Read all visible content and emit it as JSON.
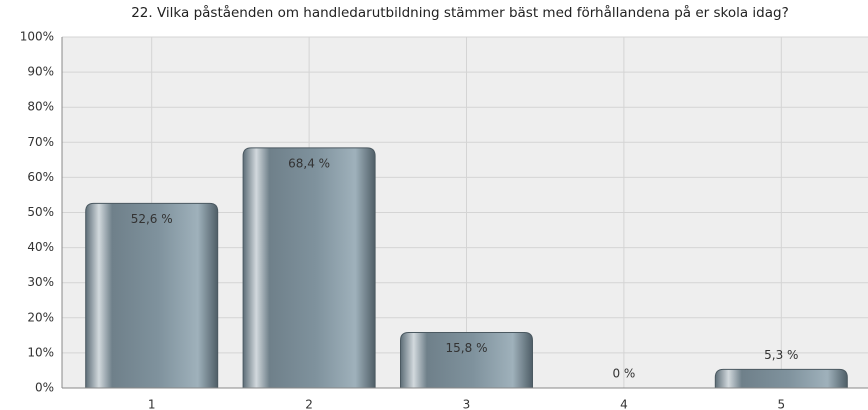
{
  "chart_data": {
    "type": "bar",
    "title": "22. Vilka påståenden om handledarutbildning stämmer bäst med förhållandena på er skola idag?",
    "categories": [
      "1",
      "2",
      "3",
      "4",
      "5"
    ],
    "values": [
      52.6,
      68.4,
      15.8,
      0,
      5.3
    ],
    "value_labels": [
      "52,6 %",
      "68,4 %",
      "15,8 %",
      "0 %",
      "5,3 %"
    ],
    "color": "#7b8d98",
    "ylim": [
      0,
      100
    ],
    "yticks": [
      {
        "value": 0,
        "label": "0%"
      },
      {
        "value": 10,
        "label": "10%"
      },
      {
        "value": 20,
        "label": "20%"
      },
      {
        "value": 30,
        "label": "30%"
      },
      {
        "value": 40,
        "label": "40%"
      },
      {
        "value": 50,
        "label": "50%"
      },
      {
        "value": 60,
        "label": "60%"
      },
      {
        "value": 70,
        "label": "70%"
      },
      {
        "value": 80,
        "label": "80%"
      },
      {
        "value": 90,
        "label": "90%"
      },
      {
        "value": 100,
        "label": "100%"
      }
    ],
    "grid": true
  }
}
